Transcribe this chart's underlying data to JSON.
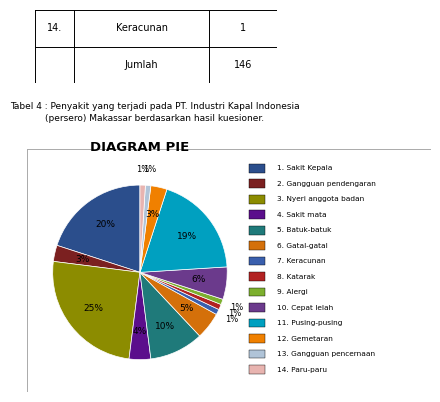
{
  "title": "DIAGRAM PIE",
  "caption": "Tabel 4 : Penyakit yang terjadi pada PT. Industri Kapal Indonesia\n(persero) Makassar berdasarkan hasil kuesioner.",
  "table_data": [
    [
      "14.",
      "Keracunan",
      "1"
    ],
    [
      "",
      "Jumlah",
      "146"
    ]
  ],
  "labels": [
    "1. Sakit Kepala",
    "2. Gangguan pendengaran",
    "3. Nyeri anggota badan",
    "4. Sakit mata",
    "5. Batuk-batuk",
    "6. Gatal-gatal",
    "7. Keracunan",
    "8. Katarak",
    "9. Alergi",
    "10. Cepat lelah",
    "11. Pusing-pusing",
    "12. Gemetaran",
    "13. Gangguan pencernaan",
    "14. Paru-paru"
  ],
  "values": [
    20,
    3,
    25,
    4,
    10,
    5,
    1,
    1,
    1,
    6,
    19,
    3,
    1,
    1
  ],
  "colors": [
    "#2B4E8C",
    "#7B2020",
    "#8C8C00",
    "#5B0E8C",
    "#1F7A7A",
    "#D4700A",
    "#3A5FAD",
    "#B22222",
    "#7CAF2E",
    "#6B3A8C",
    "#00A0C0",
    "#F08000",
    "#B0C4D8",
    "#E8B4B0"
  ],
  "startangle": 90,
  "background_color": "#FFFFFF",
  "chart_bg": "#F2F2F2"
}
